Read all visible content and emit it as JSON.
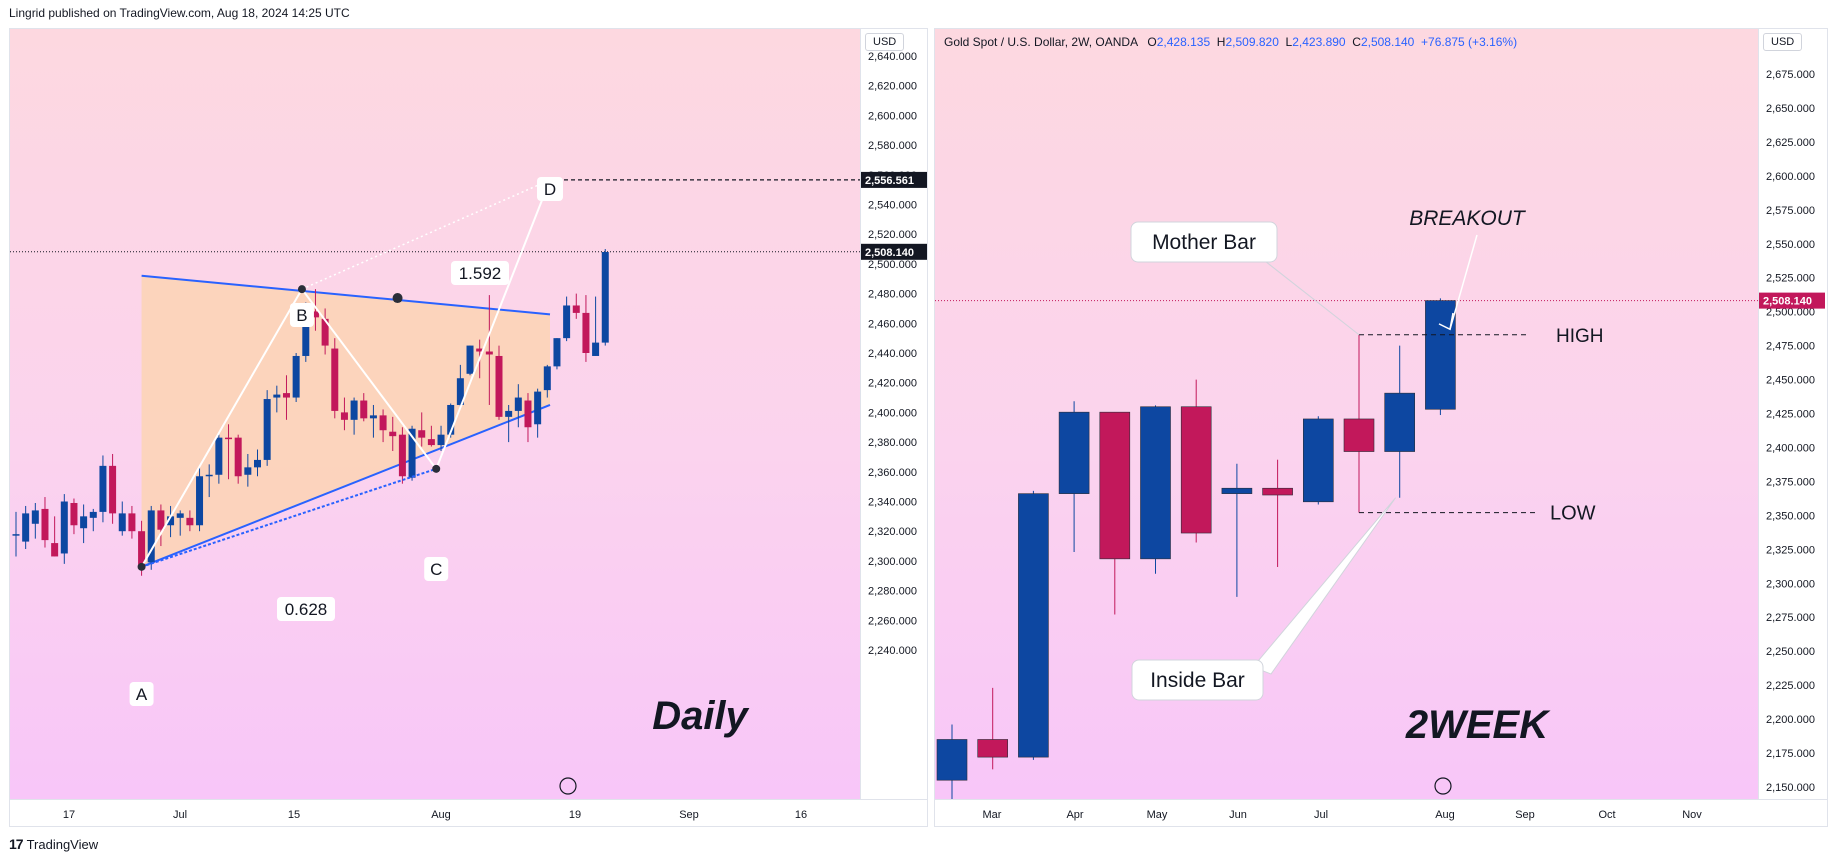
{
  "header": {
    "credit": "Lingrid published on TradingView.com, Aug 18, 2024 14:25 UTC"
  },
  "footer": {
    "brand": "TradingView"
  },
  "colors": {
    "bull": "#0d47a1",
    "bear": "#c2185b",
    "triangle_fill": "#fcd3b4",
    "triangle_line": "#2962ff"
  },
  "chart_data": [
    {
      "type": "candlestick",
      "title": "Daily",
      "currency": "USD",
      "ylim": [
        2220,
        2650
      ],
      "y_ticks": [
        "2,640.000",
        "2,620.000",
        "2,600.000",
        "2,580.000",
        "2,560.000",
        "2,540.000",
        "2,520.000",
        "2,500.000",
        "2,480.000",
        "2,460.000",
        "2,440.000",
        "2,420.000",
        "2,400.000",
        "2,380.000",
        "2,360.000",
        "2,340.000",
        "2,320.000",
        "2,300.000",
        "2,280.000",
        "2,260.000",
        "2,240.000"
      ],
      "x_ticks": [
        "17",
        "Jul",
        "15",
        "Aug",
        "19",
        "Sep",
        "16"
      ],
      "price_labels": [
        {
          "text": "2,556.561",
          "value": 2556.561,
          "style": "dark"
        },
        {
          "text": "2,508.140",
          "value": 2508.14,
          "style": "dark"
        }
      ],
      "candles": [
        {
          "o": 2318,
          "h": 2333,
          "l": 2303,
          "c": 2318
        },
        {
          "o": 2313,
          "h": 2337,
          "l": 2308,
          "c": 2332
        },
        {
          "o": 2325,
          "h": 2339,
          "l": 2315,
          "c": 2334
        },
        {
          "o": 2335,
          "h": 2343,
          "l": 2309,
          "c": 2314
        },
        {
          "o": 2312,
          "h": 2330,
          "l": 2303,
          "c": 2303
        },
        {
          "o": 2305,
          "h": 2345,
          "l": 2298,
          "c": 2340
        },
        {
          "o": 2339,
          "h": 2342,
          "l": 2318,
          "c": 2324
        },
        {
          "o": 2322,
          "h": 2338,
          "l": 2312,
          "c": 2330
        },
        {
          "o": 2329,
          "h": 2335,
          "l": 2320,
          "c": 2333
        },
        {
          "o": 2333,
          "h": 2371,
          "l": 2326,
          "c": 2364
        },
        {
          "o": 2364,
          "h": 2372,
          "l": 2325,
          "c": 2332
        },
        {
          "o": 2320,
          "h": 2340,
          "l": 2317,
          "c": 2332
        },
        {
          "o": 2332,
          "h": 2337,
          "l": 2315,
          "c": 2320
        },
        {
          "o": 2320,
          "h": 2327,
          "l": 2290,
          "c": 2296
        },
        {
          "o": 2299,
          "h": 2337,
          "l": 2294,
          "c": 2334
        },
        {
          "o": 2334,
          "h": 2338,
          "l": 2310,
          "c": 2321
        },
        {
          "o": 2324,
          "h": 2337,
          "l": 2316,
          "c": 2330
        },
        {
          "o": 2329,
          "h": 2334,
          "l": 2317,
          "c": 2332
        },
        {
          "o": 2329,
          "h": 2334,
          "l": 2320,
          "c": 2324
        },
        {
          "o": 2324,
          "h": 2363,
          "l": 2320,
          "c": 2357
        },
        {
          "o": 2357,
          "h": 2365,
          "l": 2343,
          "c": 2358
        },
        {
          "o": 2358,
          "h": 2385,
          "l": 2352,
          "c": 2383
        },
        {
          "o": 2383,
          "h": 2392,
          "l": 2355,
          "c": 2382
        },
        {
          "o": 2383,
          "h": 2385,
          "l": 2352,
          "c": 2357
        },
        {
          "o": 2358,
          "h": 2372,
          "l": 2350,
          "c": 2363
        },
        {
          "o": 2363,
          "h": 2375,
          "l": 2357,
          "c": 2368
        },
        {
          "o": 2368,
          "h": 2415,
          "l": 2364,
          "c": 2409
        },
        {
          "o": 2410,
          "h": 2418,
          "l": 2400,
          "c": 2412
        },
        {
          "o": 2413,
          "h": 2425,
          "l": 2395,
          "c": 2410
        },
        {
          "o": 2410,
          "h": 2440,
          "l": 2407,
          "c": 2438
        },
        {
          "o": 2438,
          "h": 2474,
          "l": 2434,
          "c": 2468
        },
        {
          "o": 2468,
          "h": 2483,
          "l": 2455,
          "c": 2464
        },
        {
          "o": 2463,
          "h": 2470,
          "l": 2439,
          "c": 2445
        },
        {
          "o": 2443,
          "h": 2450,
          "l": 2396,
          "c": 2401
        },
        {
          "o": 2400,
          "h": 2410,
          "l": 2388,
          "c": 2395
        },
        {
          "o": 2395,
          "h": 2410,
          "l": 2385,
          "c": 2408
        },
        {
          "o": 2408,
          "h": 2413,
          "l": 2394,
          "c": 2396
        },
        {
          "o": 2396,
          "h": 2405,
          "l": 2383,
          "c": 2398
        },
        {
          "o": 2398,
          "h": 2402,
          "l": 2380,
          "c": 2388
        },
        {
          "o": 2387,
          "h": 2397,
          "l": 2374,
          "c": 2384
        },
        {
          "o": 2385,
          "h": 2390,
          "l": 2352,
          "c": 2357
        },
        {
          "o": 2356,
          "h": 2391,
          "l": 2354,
          "c": 2389
        },
        {
          "o": 2388,
          "h": 2400,
          "l": 2377,
          "c": 2383
        },
        {
          "o": 2382,
          "h": 2391,
          "l": 2377,
          "c": 2378
        },
        {
          "o": 2378,
          "h": 2391,
          "l": 2374,
          "c": 2385
        },
        {
          "o": 2385,
          "h": 2406,
          "l": 2383,
          "c": 2405
        },
        {
          "o": 2405,
          "h": 2432,
          "l": 2404,
          "c": 2423
        },
        {
          "o": 2426,
          "h": 2445,
          "l": 2425,
          "c": 2445
        },
        {
          "o": 2443,
          "h": 2449,
          "l": 2423,
          "c": 2441
        },
        {
          "o": 2441,
          "h": 2479,
          "l": 2405,
          "c": 2439
        },
        {
          "o": 2438,
          "h": 2445,
          "l": 2395,
          "c": 2397
        },
        {
          "o": 2397,
          "h": 2405,
          "l": 2380,
          "c": 2401
        },
        {
          "o": 2401,
          "h": 2419,
          "l": 2390,
          "c": 2410
        },
        {
          "o": 2408,
          "h": 2413,
          "l": 2380,
          "c": 2390
        },
        {
          "o": 2392,
          "h": 2416,
          "l": 2383,
          "c": 2414
        },
        {
          "o": 2415,
          "h": 2432,
          "l": 2410,
          "c": 2431
        },
        {
          "o": 2431,
          "h": 2450,
          "l": 2429,
          "c": 2450
        },
        {
          "o": 2450,
          "h": 2478,
          "l": 2448,
          "c": 2472
        },
        {
          "o": 2472,
          "h": 2480,
          "l": 2463,
          "c": 2467
        },
        {
          "o": 2467,
          "h": 2479,
          "l": 2434,
          "c": 2440
        },
        {
          "o": 2438,
          "h": 2478,
          "l": 2438,
          "c": 2447
        },
        {
          "o": 2447,
          "h": 2510,
          "l": 2445,
          "c": 2508
        }
      ],
      "annotations": [
        {
          "text": "A",
          "price": 2296
        },
        {
          "text": "B",
          "price": 2483
        },
        {
          "text": "C",
          "price": 2362
        },
        {
          "text": "D",
          "price": 2556.561
        },
        {
          "text": "1.592",
          "kind": "ratio"
        },
        {
          "text": "0.628",
          "kind": "ratio"
        }
      ]
    },
    {
      "type": "candlestick",
      "title": "2WEEK",
      "currency": "USD",
      "symbol": "Gold Spot / U.S. Dollar, 2W, OANDA",
      "ohlc": {
        "o": "2,428.135",
        "h": "2,509.820",
        "l": "2,423.890",
        "c": "2,508.140",
        "change": "+76.875 (+3.16%)"
      },
      "ylim": [
        2140,
        2690
      ],
      "y_ticks": [
        "2,675.000",
        "2,650.000",
        "2,625.000",
        "2,600.000",
        "2,575.000",
        "2,550.000",
        "2,525.000",
        "2,500.000",
        "2,475.000",
        "2,450.000",
        "2,425.000",
        "2,400.000",
        "2,375.000",
        "2,350.000",
        "2,325.000",
        "2,300.000",
        "2,275.000",
        "2,250.000",
        "2,225.000",
        "2,200.000",
        "2,175.000",
        "2,150.000"
      ],
      "x_ticks": [
        "Mar",
        "Apr",
        "May",
        "Jun",
        "Jul",
        "Aug",
        "Sep",
        "Oct",
        "Nov"
      ],
      "price_labels": [
        {
          "text": "2,508.140",
          "value": 2508.14,
          "style": "accent"
        }
      ],
      "candles": [
        {
          "o": 2155,
          "h": 2196,
          "l": 2140,
          "c": 2185
        },
        {
          "o": 2185,
          "h": 2223,
          "l": 2163,
          "c": 2172
        },
        {
          "o": 2172,
          "h": 2368,
          "l": 2170,
          "c": 2366
        },
        {
          "o": 2366,
          "h": 2434,
          "l": 2323,
          "c": 2426
        },
        {
          "o": 2426,
          "h": 2426,
          "l": 2277,
          "c": 2318
        },
        {
          "o": 2318,
          "h": 2431,
          "l": 2307,
          "c": 2430
        },
        {
          "o": 2430,
          "h": 2450,
          "l": 2330,
          "c": 2337
        },
        {
          "o": 2366,
          "h": 2388,
          "l": 2290,
          "c": 2370
        },
        {
          "o": 2370,
          "h": 2391,
          "l": 2312,
          "c": 2365
        },
        {
          "o": 2360,
          "h": 2423,
          "l": 2358,
          "c": 2421
        },
        {
          "o": 2421,
          "h": 2483,
          "l": 2352,
          "c": 2397
        },
        {
          "o": 2397,
          "h": 2475,
          "l": 2363,
          "c": 2440
        },
        {
          "o": 2428.135,
          "h": 2509.82,
          "l": 2423.89,
          "c": 2508.14
        }
      ],
      "annotations": [
        {
          "text": "Mother Bar"
        },
        {
          "text": "Inside Bar"
        },
        {
          "text": "BREAKOUT"
        },
        {
          "text": "HIGH",
          "price": 2483
        },
        {
          "text": "LOW",
          "price": 2352
        }
      ]
    }
  ]
}
